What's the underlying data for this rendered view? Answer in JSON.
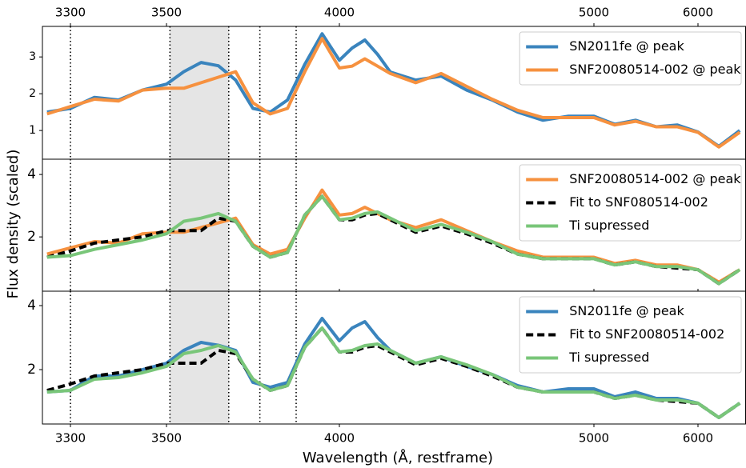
{
  "chart_data": [
    {
      "type": "line",
      "xlim": [
        3240,
        6460
      ],
      "xticks": [
        3300,
        3500,
        4000,
        5000,
        6000
      ],
      "ylim": [
        0.22,
        3.83
      ],
      "yticks": [
        1,
        2,
        3
      ],
      "legend": "upper right",
      "vlines": [
        3300,
        3510,
        3680,
        3770,
        3875
      ],
      "shade": [
        3510,
        3680
      ],
      "shade_color": "#e5e5e5",
      "x": [
        3250,
        3300,
        3350,
        3400,
        3450,
        3500,
        3550,
        3600,
        3650,
        3700,
        3750,
        3800,
        3850,
        3900,
        3950,
        4000,
        4050,
        4100,
        4150,
        4200,
        4300,
        4400,
        4500,
        4600,
        4700,
        4800,
        4900,
        5000,
        5200,
        5400,
        5600,
        5800,
        6000,
        6200,
        6400
      ],
      "series": [
        {
          "name": "SN2011fe @ peak",
          "color": "#3a84bd",
          "style": "solid",
          "values": [
            1.5,
            1.6,
            1.9,
            1.83,
            2.1,
            2.26,
            2.6,
            2.85,
            2.76,
            2.37,
            1.6,
            1.5,
            1.83,
            2.8,
            3.63,
            2.91,
            3.24,
            3.46,
            3.07,
            2.59,
            2.37,
            2.48,
            2.1,
            1.83,
            1.5,
            1.28,
            1.39,
            1.39,
            1.17,
            1.28,
            1.1,
            1.15,
            0.96,
            0.57,
            1.0
          ]
        },
        {
          "name": "SNF20080514-002 @ peak",
          "color": "#f6913f",
          "style": "solid",
          "values": [
            1.45,
            1.65,
            1.85,
            1.8,
            2.1,
            2.15,
            2.15,
            2.3,
            2.45,
            2.6,
            1.75,
            1.45,
            1.6,
            2.6,
            3.5,
            2.7,
            2.75,
            2.95,
            2.75,
            2.55,
            2.3,
            2.55,
            2.2,
            1.85,
            1.55,
            1.35,
            1.35,
            1.35,
            1.15,
            1.25,
            1.1,
            1.1,
            0.95,
            0.55,
            0.95
          ]
        }
      ]
    },
    {
      "type": "line",
      "xlim": [
        3240,
        6460
      ],
      "xticks": [
        3300,
        3500,
        4000,
        5000,
        6000
      ],
      "ylim": [
        0.26,
        4.49
      ],
      "yticks": [
        2,
        4
      ],
      "legend": "upper right",
      "ylabel": "Flux density (scaled)",
      "vlines": [
        3300,
        3510,
        3680,
        3770,
        3875
      ],
      "shade": [
        3510,
        3680
      ],
      "shade_color": "#e5e5e5",
      "x": [
        3250,
        3300,
        3350,
        3400,
        3450,
        3500,
        3550,
        3600,
        3650,
        3700,
        3750,
        3800,
        3850,
        3900,
        3950,
        4000,
        4050,
        4100,
        4150,
        4200,
        4300,
        4400,
        4500,
        4600,
        4700,
        4800,
        4900,
        5000,
        5200,
        5400,
        5600,
        5800,
        6000,
        6200,
        6400
      ],
      "series": [
        {
          "name": "SNF20080514-002 @ peak",
          "color": "#f6913f",
          "style": "solid",
          "values": [
            1.45,
            1.65,
            1.85,
            1.8,
            2.1,
            2.15,
            2.15,
            2.3,
            2.45,
            2.6,
            1.75,
            1.45,
            1.6,
            2.6,
            3.5,
            2.7,
            2.75,
            2.95,
            2.75,
            2.55,
            2.3,
            2.55,
            2.2,
            1.85,
            1.55,
            1.35,
            1.35,
            1.35,
            1.15,
            1.25,
            1.1,
            1.1,
            0.95,
            0.55,
            0.95
          ]
        },
        {
          "name": "Fit to SNF080514-002",
          "color": "#000000",
          "style": "dashed",
          "values": [
            1.35,
            1.55,
            1.8,
            1.9,
            2.0,
            2.2,
            2.2,
            2.2,
            2.6,
            2.5,
            1.7,
            1.35,
            1.5,
            2.7,
            3.3,
            2.55,
            2.55,
            2.7,
            2.75,
            2.55,
            2.15,
            2.35,
            2.1,
            1.8,
            1.45,
            1.3,
            1.3,
            1.3,
            1.1,
            1.2,
            1.05,
            1.0,
            0.95,
            0.5,
            0.95
          ]
        },
        {
          "name": "Ti supressed",
          "color": "#79c679",
          "style": "solid",
          "values": [
            1.35,
            1.4,
            1.6,
            1.75,
            1.9,
            2.1,
            2.5,
            2.6,
            2.75,
            2.5,
            1.7,
            1.35,
            1.5,
            2.7,
            3.3,
            2.55,
            2.6,
            2.75,
            2.8,
            2.6,
            2.2,
            2.4,
            2.15,
            1.85,
            1.45,
            1.3,
            1.3,
            1.3,
            1.1,
            1.2,
            1.05,
            1.05,
            0.95,
            0.5,
            0.95
          ]
        }
      ]
    },
    {
      "type": "line",
      "xlim": [
        3240,
        6460
      ],
      "xticks": [
        3300,
        3500,
        4000,
        5000,
        6000
      ],
      "ylim": [
        0.3,
        4.45
      ],
      "yticks": [
        2,
        4
      ],
      "legend": "upper right",
      "xlabel": "Wavelength (Å, restframe)",
      "vlines": [
        3300,
        3510,
        3680,
        3770,
        3875
      ],
      "shade": [
        3510,
        3680
      ],
      "shade_color": "#e5e5e5",
      "x": [
        3250,
        3300,
        3350,
        3400,
        3450,
        3500,
        3550,
        3600,
        3650,
        3700,
        3750,
        3800,
        3850,
        3900,
        3950,
        4000,
        4050,
        4100,
        4150,
        4200,
        4300,
        4400,
        4500,
        4600,
        4700,
        4800,
        4900,
        5000,
        5200,
        5400,
        5600,
        5800,
        6000,
        6200,
        6400
      ],
      "series": [
        {
          "name": "SN2011fe @ peak",
          "color": "#3a84bd",
          "style": "solid",
          "values": [
            1.3,
            1.35,
            1.8,
            1.8,
            2.0,
            2.2,
            2.6,
            2.85,
            2.76,
            2.6,
            1.6,
            1.45,
            1.6,
            2.8,
            3.6,
            2.9,
            3.3,
            3.5,
            3.0,
            2.6,
            2.2,
            2.4,
            2.1,
            1.85,
            1.5,
            1.3,
            1.4,
            1.4,
            1.15,
            1.3,
            1.1,
            1.1,
            0.95,
            0.5,
            0.95
          ]
        },
        {
          "name": "Fit to SNF20080514-002",
          "color": "#000000",
          "style": "dashed",
          "values": [
            1.35,
            1.55,
            1.8,
            1.9,
            2.0,
            2.2,
            2.2,
            2.2,
            2.6,
            2.5,
            1.7,
            1.35,
            1.5,
            2.7,
            3.3,
            2.55,
            2.55,
            2.7,
            2.75,
            2.55,
            2.15,
            2.35,
            2.1,
            1.8,
            1.45,
            1.3,
            1.3,
            1.3,
            1.1,
            1.2,
            1.05,
            1.0,
            0.95,
            0.5,
            0.95
          ]
        },
        {
          "name": "Ti supressed",
          "color": "#79c679",
          "style": "solid",
          "values": [
            1.3,
            1.35,
            1.7,
            1.75,
            1.9,
            2.1,
            2.5,
            2.6,
            2.75,
            2.55,
            1.7,
            1.35,
            1.5,
            2.7,
            3.3,
            2.55,
            2.6,
            2.75,
            2.8,
            2.6,
            2.2,
            2.4,
            2.15,
            1.85,
            1.45,
            1.3,
            1.3,
            1.3,
            1.1,
            1.2,
            1.05,
            1.05,
            0.95,
            0.5,
            0.95
          ]
        }
      ]
    }
  ]
}
